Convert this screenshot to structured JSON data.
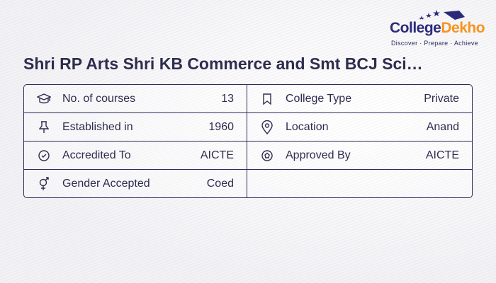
{
  "title": "Shri RP Arts Shri KB Commerce and Smt BCJ Sci…",
  "logo": {
    "part1": "College",
    "part2": "Dekho",
    "tagline": "Discover · Prepare · Achieve"
  },
  "left": [
    {
      "icon": "graduation-cap-icon",
      "label": "No. of courses",
      "value": "13"
    },
    {
      "icon": "pushpin-icon",
      "label": "Established in",
      "value": "1960"
    },
    {
      "icon": "check-circle-icon",
      "label": "Accredited To",
      "value": "AICTE"
    },
    {
      "icon": "gender-icon",
      "label": "Gender Accepted",
      "value": "Coed"
    }
  ],
  "right": [
    {
      "icon": "bookmark-icon",
      "label": "College Type",
      "value": "Private"
    },
    {
      "icon": "location-pin-icon",
      "label": "Location",
      "value": "Anand"
    },
    {
      "icon": "badge-star-icon",
      "label": "Approved By",
      "value": "AICTE"
    }
  ]
}
